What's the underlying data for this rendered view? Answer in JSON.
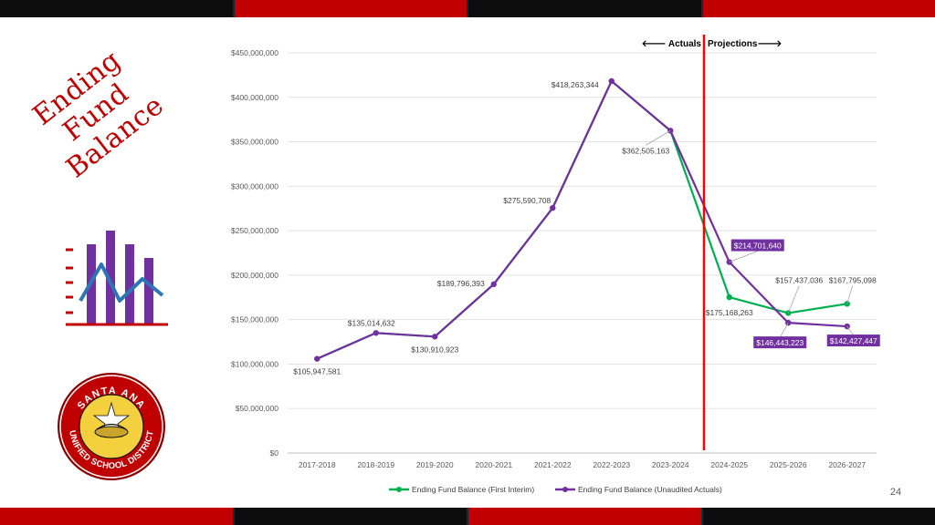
{
  "slide": {
    "title_line1": "Ending Fund",
    "title_line2": "Balance",
    "page_number": "24",
    "logo_text_top": "SANTA ANA",
    "logo_text_bottom": "UNIFIED SCHOOL DISTRICT"
  },
  "colors": {
    "accent_red": "#c00000",
    "purple": "#7030a0",
    "green": "#00b050",
    "icon_blue": "#2e75b6"
  },
  "chart_data": {
    "type": "line",
    "categories": [
      "2017-2018",
      "2018-2019",
      "2019-2020",
      "2020-2021",
      "2021-2022",
      "2022-2023",
      "2023-2024",
      "2024-2025",
      "2025-2026",
      "2026-2027"
    ],
    "ylim": [
      0,
      450000000
    ],
    "yticks": [
      0,
      50000000,
      100000000,
      150000000,
      200000000,
      250000000,
      300000000,
      350000000,
      400000000,
      450000000
    ],
    "ytick_labels": [
      "$0",
      "$50,000,000",
      "$100,000,000",
      "$150,000,000",
      "$200,000,000",
      "$250,000,000",
      "$300,000,000",
      "$350,000,000",
      "$400,000,000",
      "$450,000,000"
    ],
    "grid": true,
    "legend_position": "bottom",
    "series": [
      {
        "name": "Ending Fund Balance (First Interim)",
        "color": "#00b050",
        "values": [
          105947581,
          135014632,
          130910923,
          189796393,
          275590708,
          418263344,
          362505163,
          175168263,
          157437036,
          167795098
        ]
      },
      {
        "name": "Ending Fund Balance (Unaudited Actuals)",
        "color": "#7030a0",
        "values": [
          105947581,
          135014632,
          130910923,
          189796393,
          275590708,
          418263344,
          362505163,
          214701640,
          146443223,
          142427447
        ]
      }
    ],
    "labels": [
      {
        "text": "$105,947,581",
        "style": "plain"
      },
      {
        "text": "$135,014,632",
        "style": "plain"
      },
      {
        "text": "$130,910,923",
        "style": "plain"
      },
      {
        "text": "$189,796,393",
        "style": "plain"
      },
      {
        "text": "$275,590,708",
        "style": "plain"
      },
      {
        "text": "$418,263,344",
        "style": "plain"
      },
      {
        "text": "$362,505,163",
        "style": "plain"
      },
      {
        "text": "$214,701,640",
        "style": "boxed"
      },
      {
        "text": "$175,168,263",
        "style": "plain"
      },
      {
        "text": "$157,437,036",
        "style": "plain"
      },
      {
        "text": "$146,443,223",
        "style": "boxed"
      },
      {
        "text": "$167,795,098",
        "style": "plain"
      },
      {
        "text": "$142,427,447",
        "style": "boxed"
      }
    ],
    "divider": {
      "after_category": "2023-2024",
      "left_label": "🡐 Actuals",
      "right_label": "Projections🡒"
    }
  }
}
